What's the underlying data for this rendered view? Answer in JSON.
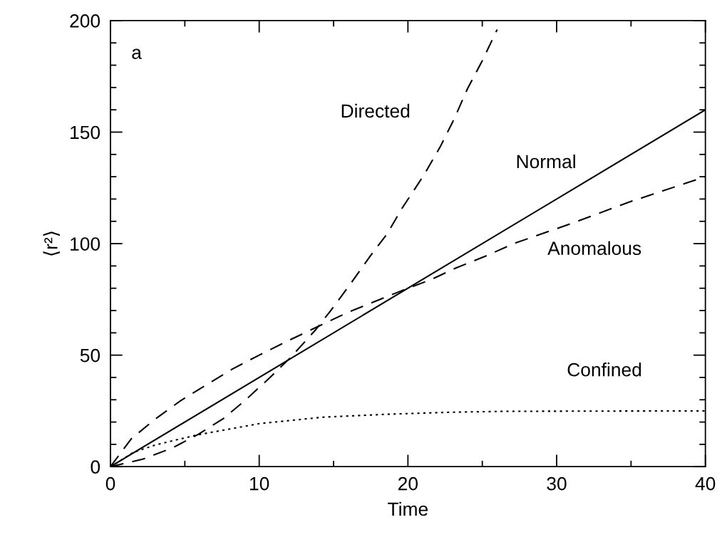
{
  "chart_data": {
    "type": "line",
    "xlabel": "Time",
    "ylabel": "⟨r²⟩",
    "xlim": [
      0,
      40
    ],
    "ylim": [
      0,
      200
    ],
    "xticks": [
      0,
      {
        "value": 5,
        "label": null
      },
      10,
      {
        "value": 15,
        "label": null
      },
      20,
      {
        "value": 25,
        "label": null
      },
      30,
      {
        "value": 35,
        "label": null
      },
      40
    ],
    "yticks": [
      0,
      {
        "value": 10,
        "label": null
      },
      {
        "value": 20,
        "label": null
      },
      {
        "value": 30,
        "label": null
      },
      {
        "value": 40,
        "label": null
      },
      50,
      {
        "value": 60,
        "label": null
      },
      {
        "value": 70,
        "label": null
      },
      {
        "value": 80,
        "label": null
      },
      {
        "value": 90,
        "label": null
      },
      100,
      {
        "value": 110,
        "label": null
      },
      {
        "value": 120,
        "label": null
      },
      {
        "value": 130,
        "label": null
      },
      {
        "value": 140,
        "label": null
      },
      150,
      {
        "value": 160,
        "label": null
      },
      {
        "value": 170,
        "label": null
      },
      {
        "value": 180,
        "label": null
      },
      {
        "value": 190,
        "label": null
      },
      200
    ],
    "grid": false,
    "legend": false,
    "marker": "none",
    "series": [
      {
        "name": "Normal",
        "color": "#000000",
        "line_style": "solid",
        "x": [
          0,
          40
        ],
        "values": [
          0,
          160
        ]
      },
      {
        "name": "Directed",
        "color": "#000000",
        "line_style": "dashed",
        "x": [
          0,
          2.2,
          4.2,
          5.9,
          7.6,
          9.1,
          10.7,
          12.1,
          13.8,
          14.8,
          16.0,
          17.4,
          18.6,
          19.6,
          21.1,
          22.2,
          23.1,
          24.0,
          25.0,
          26.0
        ],
        "values": [
          0,
          3.4,
          8.5,
          14.5,
          21.6,
          30,
          39.8,
          48.9,
          61.4,
          69.9,
          80.7,
          93.8,
          104.4,
          115.8,
          131,
          143.8,
          155.8,
          169.4,
          182,
          196
        ]
      },
      {
        "name": "Anomalous",
        "color": "#000000",
        "line_style": "dashed",
        "x": [
          0,
          1.4,
          3.0,
          4.7,
          6.5,
          8.2,
          10.0,
          11.9,
          14.0,
          16.0,
          17.9,
          19.8,
          21.6,
          23.2,
          25.4,
          27.1,
          30.9,
          34.9,
          38.6,
          40
        ],
        "values": [
          0,
          12.5,
          21.3,
          29.5,
          36.9,
          43.8,
          50,
          56.3,
          63,
          69.3,
          74.4,
          79.5,
          84,
          89,
          94.9,
          100,
          108.8,
          118.7,
          126.9,
          130
        ]
      },
      {
        "name": "Confined",
        "color": "#000000",
        "line_style": "dotted",
        "x": [
          0,
          0.7,
          1.5,
          3.0,
          5.8,
          10.0,
          14.3,
          18.6,
          22.8,
          26.4,
          32,
          40
        ],
        "values": [
          0,
          2.8,
          6.3,
          9.7,
          14.2,
          19.3,
          22.2,
          23.5,
          24.4,
          24.8,
          24.9,
          25
        ]
      }
    ],
    "annotations": [
      "a"
    ]
  }
}
